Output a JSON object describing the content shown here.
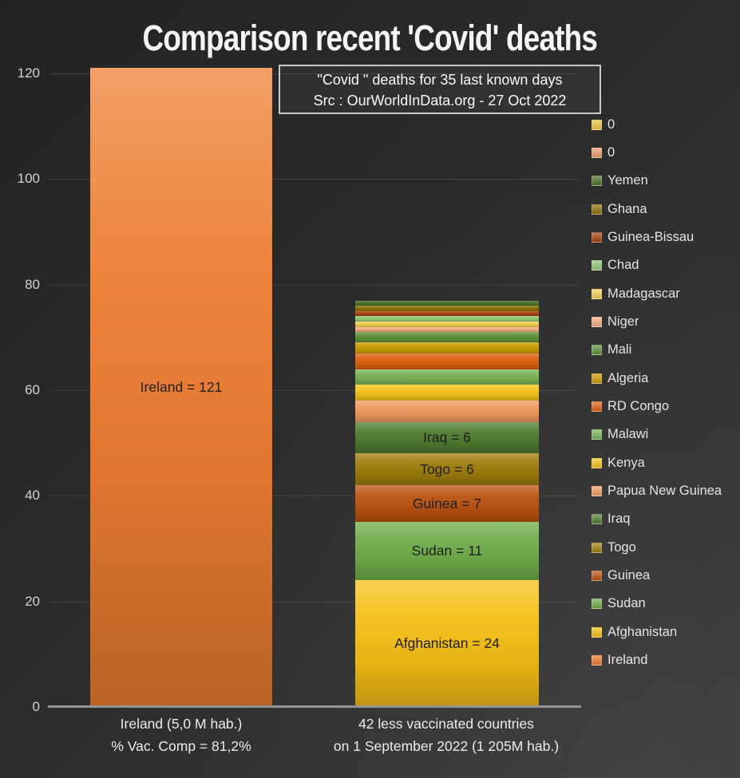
{
  "chart_data": {
    "type": "bar",
    "stacked": true,
    "title": "Comparison recent 'Covid' deaths",
    "annotation": {
      "line1": "\"Covid \" deaths for 35 last known days",
      "line2": "Src : OurWorldInData.org - 27 Oct 2022"
    },
    "ylim": [
      0,
      120
    ],
    "yticks": [
      "0",
      "20",
      "40",
      "60",
      "80",
      "100",
      "120"
    ],
    "grid": "horizontal",
    "legend_position": "right",
    "categories": [
      {
        "line1": "Ireland (5,0 M hab.)",
        "line2": "% Vac. Comp = 81,2%"
      },
      {
        "line1": "42 less vaccinated countries",
        "line2": "on 1 September 2022 (1 205M hab.)"
      }
    ],
    "bars": [
      {
        "category_index": 0,
        "total": 121,
        "segments": [
          {
            "name": "Ireland",
            "value": 121,
            "color": "#ED7D31",
            "label": "Ireland = 121"
          }
        ]
      },
      {
        "category_index": 1,
        "total": 77,
        "segments": [
          {
            "name": "Afghanistan",
            "value": 24,
            "color": "#F5BE15",
            "label": "Afghanistan = 24"
          },
          {
            "name": "Sudan",
            "value": 11,
            "color": "#6FAD49",
            "label": "Sudan = 11"
          },
          {
            "name": "Guinea",
            "value": 7,
            "color": "#BB5211",
            "label": "Guinea = 7"
          },
          {
            "name": "Togo",
            "value": 6,
            "color": "#9E7D0C",
            "label": "Togo = 6"
          },
          {
            "name": "Iraq",
            "value": 6,
            "color": "#507C2F",
            "label": "Iraq = 6"
          },
          {
            "name": "Papua New Guinea",
            "value": 4,
            "color": "#F09A5F",
            "label": ""
          },
          {
            "name": "Kenya",
            "value": 3,
            "color": "#F4C519",
            "label": ""
          },
          {
            "name": "Malawi",
            "value": 3,
            "color": "#79B453",
            "label": ""
          },
          {
            "name": "RD Congo",
            "value": 3,
            "color": "#DD600F",
            "label": ""
          },
          {
            "name": "Algeria",
            "value": 2,
            "color": "#CC9C02",
            "label": ""
          },
          {
            "name": "Mali",
            "value": 2,
            "color": "#5F9138",
            "label": ""
          },
          {
            "name": "Niger",
            "value": 1,
            "color": "#F4AC7E",
            "label": ""
          },
          {
            "name": "Madagascar",
            "value": 1,
            "color": "#F4CD51",
            "label": ""
          },
          {
            "name": "Chad",
            "value": 1,
            "color": "#94C673",
            "label": ""
          },
          {
            "name": "Guinea-Bissau",
            "value": 1,
            "color": "#A8400D",
            "label": ""
          },
          {
            "name": "Ghana",
            "value": 1,
            "color": "#8D6F08",
            "label": ""
          },
          {
            "name": "Yemen",
            "value": 1,
            "color": "#4C7129",
            "label": ""
          },
          {
            "name": "0",
            "value": 0,
            "color": "#EB9B6A",
            "label": ""
          },
          {
            "name": "0",
            "value": 0,
            "color": "#EFC340",
            "label": ""
          }
        ]
      }
    ],
    "legend": [
      {
        "label": "0",
        "color": "#EFC340"
      },
      {
        "label": "0",
        "color": "#EB9B6A"
      },
      {
        "label": "Yemen",
        "color": "#4C7129"
      },
      {
        "label": "Ghana",
        "color": "#8D6F08"
      },
      {
        "label": "Guinea-Bissau",
        "color": "#A8400D"
      },
      {
        "label": "Chad",
        "color": "#94C673"
      },
      {
        "label": "Madagascar",
        "color": "#F4CD51"
      },
      {
        "label": "Niger",
        "color": "#F4AC7E"
      },
      {
        "label": "Mali",
        "color": "#5F9138"
      },
      {
        "label": "Algeria",
        "color": "#CC9C02"
      },
      {
        "label": "RD Congo",
        "color": "#DD600F"
      },
      {
        "label": "Malawi",
        "color": "#79B453"
      },
      {
        "label": "Kenya",
        "color": "#F4C519"
      },
      {
        "label": "Papua New Guinea",
        "color": "#F09A5F"
      },
      {
        "label": "Iraq",
        "color": "#507C2F"
      },
      {
        "label": "Togo",
        "color": "#9E7D0C"
      },
      {
        "label": "Guinea",
        "color": "#BB5211"
      },
      {
        "label": "Sudan",
        "color": "#6FAD49"
      },
      {
        "label": "Afghanistan",
        "color": "#F5BE15"
      },
      {
        "label": "Ireland",
        "color": "#ED7D31"
      }
    ]
  }
}
